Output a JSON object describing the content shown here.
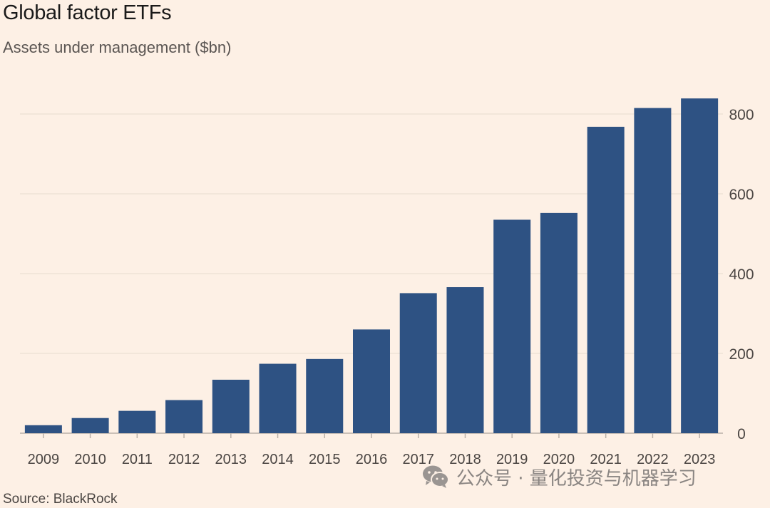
{
  "chart_data": {
    "type": "bar",
    "title": "Global factor ETFs",
    "subtitle": "Assets under management ($bn)",
    "categories": [
      "2009",
      "2010",
      "2011",
      "2012",
      "2013",
      "2014",
      "2015",
      "2016",
      "2017",
      "2018",
      "2019",
      "2020",
      "2021",
      "2022",
      "2023"
    ],
    "values": [
      20,
      38,
      56,
      83,
      134,
      174,
      186,
      260,
      351,
      366,
      535,
      552,
      768,
      815,
      839
    ],
    "ylim": [
      0,
      800
    ],
    "yticks": [
      0,
      200,
      400,
      600,
      800
    ],
    "y_axis_position": "right",
    "grid": true,
    "bar_color": "#2e5283",
    "gridline_color": "#e6dbd0",
    "source": "Source: BlackRock"
  },
  "watermark": {
    "icon": "wechat-icon",
    "text": "公众号 · 量化投资与机器学习"
  }
}
